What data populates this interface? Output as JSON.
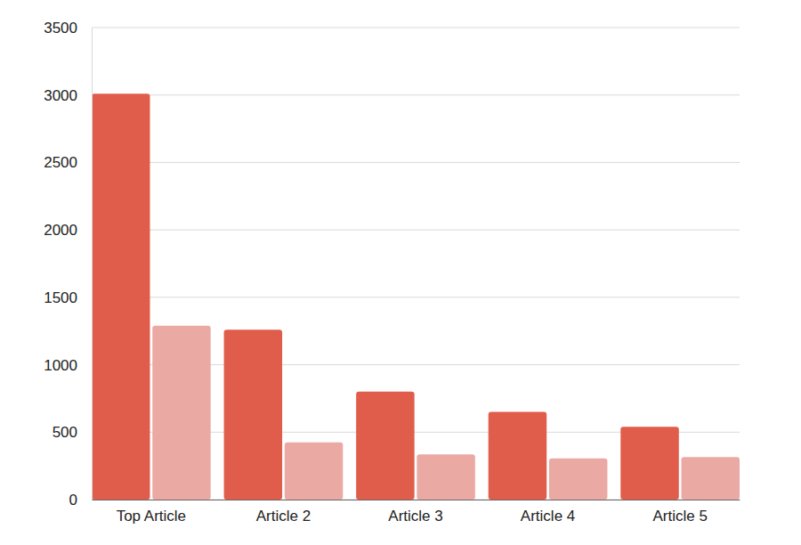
{
  "chart_data": {
    "type": "bar",
    "categories": [
      "Top Article",
      "Article 2",
      "Article 3",
      "Article 4",
      "Article 5"
    ],
    "series": [
      {
        "color": "#e05d4b",
        "values": [
          3010,
          1260,
          800,
          650,
          540
        ]
      },
      {
        "color": "#eba9a3",
        "values": [
          1290,
          425,
          335,
          305,
          315
        ]
      }
    ],
    "ylim": [
      0,
      3500
    ],
    "yticks": [
      0,
      500,
      1000,
      1500,
      2000,
      2500,
      3000,
      3500
    ],
    "grid": true
  }
}
